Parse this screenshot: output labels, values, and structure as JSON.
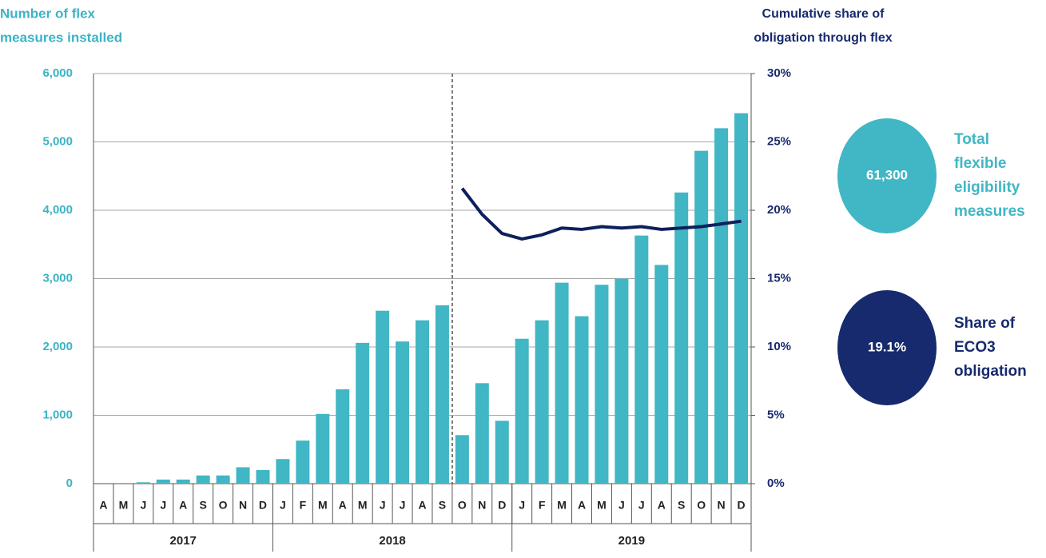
{
  "chart_data": {
    "type": "bar",
    "y_label_lines": [
      "Number of flex",
      "measures installed"
    ],
    "y2_label_lines": [
      "Cumulative share of",
      "obligation through flex"
    ],
    "category_groups": [
      {
        "name": "2017",
        "categories": [
          "A",
          "M",
          "J",
          "J",
          "A",
          "S",
          "O",
          "N",
          "D"
        ]
      },
      {
        "name": "2018",
        "categories": [
          "J",
          "F",
          "M",
          "A",
          "M",
          "J",
          "J",
          "A",
          "S",
          "O",
          "N",
          "D"
        ]
      },
      {
        "name": "2019",
        "categories": [
          "J",
          "F",
          "M",
          "A",
          "M",
          "J",
          "J",
          "A",
          "S",
          "O",
          "N",
          "D"
        ]
      }
    ],
    "series": [
      {
        "type": "bar",
        "color": "#41b6c4",
        "values": [
          0,
          0,
          20,
          60,
          60,
          120,
          120,
          240,
          200,
          360,
          630,
          1020,
          1380,
          2060,
          2530,
          2080,
          2390,
          2610,
          710,
          1470,
          920,
          2120,
          2390,
          2940,
          2450,
          2910,
          3000,
          3630,
          3200,
          4260,
          4870,
          5200,
          5420
        ]
      },
      {
        "type": "line",
        "axis": "y2",
        "color": "#0d1f5c",
        "values": [
          null,
          null,
          null,
          null,
          null,
          null,
          null,
          null,
          null,
          null,
          null,
          null,
          null,
          null,
          null,
          null,
          null,
          null,
          21.6,
          19.7,
          18.3,
          17.9,
          18.2,
          18.7,
          18.6,
          18.8,
          18.7,
          18.8,
          18.6,
          18.7,
          18.8,
          19.0,
          19.2
        ]
      }
    ],
    "ylim": [
      0,
      6000
    ],
    "yticks": [
      0,
      {
        "value": 1000,
        "label": "1,000"
      },
      {
        "value": 2000,
        "label": "2,000"
      },
      {
        "value": 3000,
        "label": "3,000"
      },
      {
        "value": 4000,
        "label": "4,000"
      },
      {
        "value": 5000,
        "label": "5,000"
      },
      {
        "value": 6000,
        "label": "6,000"
      }
    ],
    "y2lim": [
      0,
      30
    ],
    "y2ticks": [
      {
        "value": 0,
        "label": "0%"
      },
      {
        "value": 5,
        "label": "5%"
      },
      {
        "value": 10,
        "label": "10%"
      },
      {
        "value": 15,
        "label": "15%"
      },
      {
        "value": 20,
        "label": "20%"
      },
      {
        "value": 25,
        "label": "25%"
      },
      {
        "value": 30,
        "label": "30%"
      }
    ],
    "grid": true,
    "callouts": [
      {
        "value_label": "61,300",
        "color": "#41b6c4",
        "text_color": "#41b6c4",
        "lines": [
          "Total",
          "flexible",
          "eligibility",
          "measures"
        ]
      },
      {
        "value_label": "19.1%",
        "color": "#172a6e",
        "text_color": "#172a6e",
        "lines": [
          "Share of",
          "ECO3",
          "obligation"
        ]
      }
    ]
  }
}
